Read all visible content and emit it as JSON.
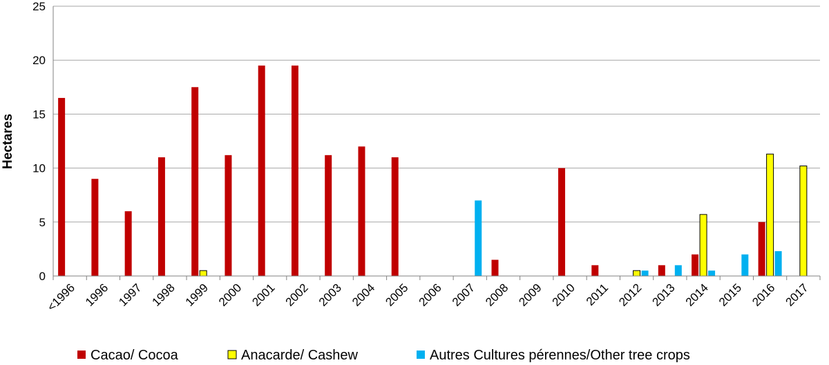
{
  "chart_data": {
    "type": "bar",
    "title": "",
    "xlabel": "",
    "ylabel": "Hectares",
    "ylim": [
      0,
      25
    ],
    "yticks": [
      0,
      5,
      10,
      15,
      20,
      25
    ],
    "grid": "horizontal",
    "legend_position": "bottom",
    "categories": [
      "<1996",
      "1996",
      "1997",
      "1998",
      "1999",
      "2000",
      "2001",
      "2002",
      "2003",
      "2004",
      "2005",
      "2006",
      "2007",
      "2008",
      "2009",
      "2010",
      "2011",
      "2012",
      "2013",
      "2014",
      "2015",
      "2016",
      "2017"
    ],
    "series": [
      {
        "name": "Cacao/ Cocoa",
        "color": "#c00000",
        "outline": "none",
        "values": [
          16.5,
          9,
          6,
          11,
          17.5,
          11.2,
          19.5,
          19.5,
          11.2,
          12,
          11,
          0,
          0,
          1.5,
          0,
          10,
          1,
          0,
          1,
          2,
          0,
          5,
          0
        ]
      },
      {
        "name": "Anacarde/ Cashew",
        "color": "#ffff00",
        "outline": "#000000",
        "values": [
          0,
          0,
          0,
          0,
          0.5,
          0,
          0,
          0,
          0,
          0,
          0,
          0,
          0,
          0,
          0,
          0,
          0,
          0.5,
          0,
          5.7,
          0,
          11.3,
          10.2
        ]
      },
      {
        "name": "Autres Cultures pérennes/Other tree crops",
        "color": "#00b0f0",
        "outline": "none",
        "values": [
          0,
          0,
          0,
          0,
          0,
          0,
          0,
          0,
          0,
          0,
          0,
          0,
          7,
          0,
          0,
          0,
          0,
          0.5,
          1,
          0.5,
          2,
          2.3,
          0
        ]
      }
    ]
  }
}
